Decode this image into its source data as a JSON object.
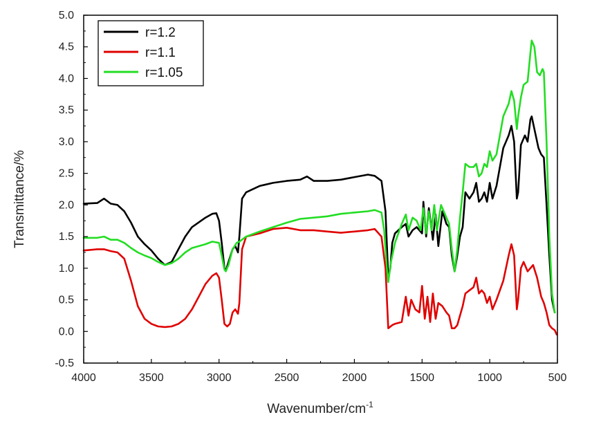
{
  "chart_data": {
    "type": "line",
    "title": "",
    "xlabel": "Wavenumber/cm",
    "xlabel_superscript": "-1",
    "ylabel": "Transmittance/%",
    "xlim": [
      4000,
      500
    ],
    "ylim": [
      -0.5,
      5.0
    ],
    "x_reversed": true,
    "x_ticks": [
      4000,
      3500,
      3000,
      2500,
      2000,
      1500,
      1000,
      500
    ],
    "x_tick_labels": [
      "4000",
      "3500",
      "3000",
      "2500",
      "2000",
      "1500",
      "1000",
      "500"
    ],
    "y_ticks": [
      -0.5,
      0.0,
      0.5,
      1.0,
      1.5,
      2.0,
      2.5,
      3.0,
      3.5,
      4.0,
      4.5,
      5.0
    ],
    "y_tick_labels": [
      "-0.5",
      "0.0",
      "0.5",
      "1.0",
      "1.5",
      "2.0",
      "2.5",
      "3.0",
      "3.5",
      "4.0",
      "4.5",
      "5.0"
    ],
    "grid": false,
    "legend_position": "top-left",
    "series": [
      {
        "name": "r=1.2",
        "color": "#000000",
        "points": [
          [
            4000,
            2.02
          ],
          [
            3900,
            2.03
          ],
          [
            3850,
            2.1
          ],
          [
            3800,
            2.02
          ],
          [
            3750,
            2.0
          ],
          [
            3700,
            1.9
          ],
          [
            3650,
            1.72
          ],
          [
            3600,
            1.5
          ],
          [
            3550,
            1.38
          ],
          [
            3500,
            1.28
          ],
          [
            3450,
            1.15
          ],
          [
            3400,
            1.05
          ],
          [
            3350,
            1.1
          ],
          [
            3300,
            1.3
          ],
          [
            3250,
            1.5
          ],
          [
            3200,
            1.65
          ],
          [
            3100,
            1.8
          ],
          [
            3050,
            1.86
          ],
          [
            3020,
            1.87
          ],
          [
            3000,
            1.75
          ],
          [
            2980,
            1.4
          ],
          [
            2960,
            1.0
          ],
          [
            2950,
            0.96
          ],
          [
            2930,
            1.1
          ],
          [
            2900,
            1.3
          ],
          [
            2880,
            1.35
          ],
          [
            2860,
            1.25
          ],
          [
            2850,
            1.5
          ],
          [
            2830,
            2.1
          ],
          [
            2800,
            2.2
          ],
          [
            2700,
            2.3
          ],
          [
            2600,
            2.35
          ],
          [
            2500,
            2.38
          ],
          [
            2400,
            2.4
          ],
          [
            2350,
            2.45
          ],
          [
            2300,
            2.38
          ],
          [
            2200,
            2.38
          ],
          [
            2100,
            2.4
          ],
          [
            2000,
            2.44
          ],
          [
            1900,
            2.48
          ],
          [
            1850,
            2.46
          ],
          [
            1800,
            2.38
          ],
          [
            1770,
            1.9
          ],
          [
            1750,
            0.85
          ],
          [
            1735,
            1.0
          ],
          [
            1720,
            1.4
          ],
          [
            1700,
            1.55
          ],
          [
            1650,
            1.65
          ],
          [
            1620,
            1.7
          ],
          [
            1600,
            1.5
          ],
          [
            1570,
            1.6
          ],
          [
            1540,
            1.65
          ],
          [
            1500,
            1.55
          ],
          [
            1490,
            2.05
          ],
          [
            1470,
            1.5
          ],
          [
            1450,
            1.95
          ],
          [
            1420,
            1.45
          ],
          [
            1400,
            1.85
          ],
          [
            1380,
            1.35
          ],
          [
            1350,
            1.9
          ],
          [
            1320,
            1.7
          ],
          [
            1300,
            1.65
          ],
          [
            1280,
            1.2
          ],
          [
            1260,
            0.95
          ],
          [
            1240,
            1.2
          ],
          [
            1220,
            1.5
          ],
          [
            1200,
            1.65
          ],
          [
            1180,
            2.2
          ],
          [
            1150,
            2.1
          ],
          [
            1120,
            2.2
          ],
          [
            1100,
            2.35
          ],
          [
            1080,
            2.05
          ],
          [
            1060,
            2.1
          ],
          [
            1040,
            2.2
          ],
          [
            1020,
            2.05
          ],
          [
            1000,
            2.35
          ],
          [
            980,
            2.1
          ],
          [
            950,
            2.3
          ],
          [
            900,
            2.9
          ],
          [
            860,
            3.1
          ],
          [
            840,
            3.25
          ],
          [
            820,
            3.0
          ],
          [
            800,
            2.1
          ],
          [
            790,
            2.2
          ],
          [
            770,
            2.95
          ],
          [
            740,
            3.1
          ],
          [
            720,
            3.0
          ],
          [
            700,
            3.35
          ],
          [
            690,
            3.4
          ],
          [
            670,
            3.2
          ],
          [
            640,
            2.9
          ],
          [
            620,
            2.8
          ],
          [
            600,
            2.75
          ],
          [
            580,
            2.0
          ],
          [
            560,
            1.2
          ],
          [
            540,
            0.5
          ],
          [
            520,
            0.3
          ]
        ]
      },
      {
        "name": "r=1.1",
        "color": "#e00000",
        "points": [
          [
            4000,
            1.28
          ],
          [
            3900,
            1.3
          ],
          [
            3850,
            1.3
          ],
          [
            3800,
            1.27
          ],
          [
            3750,
            1.25
          ],
          [
            3700,
            1.15
          ],
          [
            3650,
            0.8
          ],
          [
            3600,
            0.4
          ],
          [
            3550,
            0.2
          ],
          [
            3500,
            0.12
          ],
          [
            3450,
            0.08
          ],
          [
            3400,
            0.07
          ],
          [
            3350,
            0.08
          ],
          [
            3300,
            0.12
          ],
          [
            3250,
            0.2
          ],
          [
            3200,
            0.35
          ],
          [
            3150,
            0.55
          ],
          [
            3100,
            0.75
          ],
          [
            3050,
            0.88
          ],
          [
            3020,
            0.92
          ],
          [
            3000,
            0.85
          ],
          [
            2980,
            0.5
          ],
          [
            2960,
            0.12
          ],
          [
            2940,
            0.08
          ],
          [
            2920,
            0.12
          ],
          [
            2900,
            0.3
          ],
          [
            2880,
            0.35
          ],
          [
            2860,
            0.28
          ],
          [
            2850,
            0.45
          ],
          [
            2830,
            1.3
          ],
          [
            2800,
            1.5
          ],
          [
            2700,
            1.55
          ],
          [
            2600,
            1.62
          ],
          [
            2500,
            1.64
          ],
          [
            2400,
            1.6
          ],
          [
            2300,
            1.6
          ],
          [
            2200,
            1.58
          ],
          [
            2100,
            1.56
          ],
          [
            2000,
            1.58
          ],
          [
            1900,
            1.6
          ],
          [
            1850,
            1.62
          ],
          [
            1800,
            1.5
          ],
          [
            1770,
            1.0
          ],
          [
            1750,
            0.05
          ],
          [
            1720,
            0.1
          ],
          [
            1700,
            0.12
          ],
          [
            1650,
            0.15
          ],
          [
            1620,
            0.55
          ],
          [
            1600,
            0.25
          ],
          [
            1580,
            0.5
          ],
          [
            1550,
            0.35
          ],
          [
            1520,
            0.3
          ],
          [
            1500,
            0.72
          ],
          [
            1480,
            0.2
          ],
          [
            1460,
            0.55
          ],
          [
            1440,
            0.15
          ],
          [
            1420,
            0.6
          ],
          [
            1400,
            0.2
          ],
          [
            1380,
            0.45
          ],
          [
            1350,
            0.4
          ],
          [
            1320,
            0.3
          ],
          [
            1300,
            0.25
          ],
          [
            1280,
            0.05
          ],
          [
            1260,
            0.05
          ],
          [
            1240,
            0.1
          ],
          [
            1200,
            0.4
          ],
          [
            1180,
            0.6
          ],
          [
            1150,
            0.65
          ],
          [
            1120,
            0.7
          ],
          [
            1100,
            0.85
          ],
          [
            1080,
            0.6
          ],
          [
            1060,
            0.65
          ],
          [
            1040,
            0.6
          ],
          [
            1020,
            0.45
          ],
          [
            1000,
            0.55
          ],
          [
            980,
            0.35
          ],
          [
            950,
            0.5
          ],
          [
            900,
            0.8
          ],
          [
            860,
            1.2
          ],
          [
            840,
            1.38
          ],
          [
            820,
            1.2
          ],
          [
            800,
            0.35
          ],
          [
            790,
            0.5
          ],
          [
            770,
            1.0
          ],
          [
            750,
            1.1
          ],
          [
            720,
            0.95
          ],
          [
            700,
            1.0
          ],
          [
            680,
            1.05
          ],
          [
            650,
            0.85
          ],
          [
            620,
            0.55
          ],
          [
            600,
            0.45
          ],
          [
            580,
            0.3
          ],
          [
            560,
            0.1
          ],
          [
            540,
            0.05
          ],
          [
            520,
            0.02
          ],
          [
            505,
            -0.05
          ]
        ]
      },
      {
        "name": "r=1.05",
        "color": "#22dd22",
        "points": [
          [
            4000,
            1.48
          ],
          [
            3900,
            1.48
          ],
          [
            3850,
            1.5
          ],
          [
            3800,
            1.45
          ],
          [
            3750,
            1.45
          ],
          [
            3700,
            1.4
          ],
          [
            3650,
            1.32
          ],
          [
            3600,
            1.25
          ],
          [
            3550,
            1.2
          ],
          [
            3500,
            1.16
          ],
          [
            3450,
            1.1
          ],
          [
            3400,
            1.05
          ],
          [
            3350,
            1.08
          ],
          [
            3300,
            1.15
          ],
          [
            3250,
            1.25
          ],
          [
            3200,
            1.32
          ],
          [
            3100,
            1.38
          ],
          [
            3050,
            1.42
          ],
          [
            3000,
            1.4
          ],
          [
            2980,
            1.2
          ],
          [
            2960,
            0.98
          ],
          [
            2950,
            0.95
          ],
          [
            2930,
            1.05
          ],
          [
            2900,
            1.3
          ],
          [
            2870,
            1.4
          ],
          [
            2850,
            1.42
          ],
          [
            2800,
            1.5
          ],
          [
            2700,
            1.58
          ],
          [
            2600,
            1.65
          ],
          [
            2500,
            1.72
          ],
          [
            2400,
            1.78
          ],
          [
            2300,
            1.8
          ],
          [
            2200,
            1.82
          ],
          [
            2100,
            1.86
          ],
          [
            2000,
            1.88
          ],
          [
            1900,
            1.9
          ],
          [
            1850,
            1.92
          ],
          [
            1800,
            1.88
          ],
          [
            1780,
            1.6
          ],
          [
            1760,
            1.0
          ],
          [
            1750,
            0.78
          ],
          [
            1730,
            1.1
          ],
          [
            1700,
            1.4
          ],
          [
            1650,
            1.7
          ],
          [
            1620,
            1.85
          ],
          [
            1600,
            1.6
          ],
          [
            1570,
            1.8
          ],
          [
            1540,
            1.75
          ],
          [
            1510,
            1.6
          ],
          [
            1490,
            1.95
          ],
          [
            1470,
            1.55
          ],
          [
            1450,
            1.9
          ],
          [
            1430,
            1.6
          ],
          [
            1410,
            2.0
          ],
          [
            1390,
            1.6
          ],
          [
            1360,
            2.0
          ],
          [
            1320,
            1.8
          ],
          [
            1300,
            1.7
          ],
          [
            1280,
            1.3
          ],
          [
            1260,
            0.95
          ],
          [
            1240,
            1.3
          ],
          [
            1220,
            1.8
          ],
          [
            1200,
            2.2
          ],
          [
            1180,
            2.65
          ],
          [
            1150,
            2.6
          ],
          [
            1120,
            2.6
          ],
          [
            1100,
            2.65
          ],
          [
            1080,
            2.45
          ],
          [
            1060,
            2.5
          ],
          [
            1040,
            2.65
          ],
          [
            1020,
            2.6
          ],
          [
            1000,
            2.85
          ],
          [
            980,
            2.7
          ],
          [
            950,
            2.8
          ],
          [
            900,
            3.4
          ],
          [
            860,
            3.6
          ],
          [
            840,
            3.8
          ],
          [
            820,
            3.65
          ],
          [
            800,
            3.2
          ],
          [
            790,
            3.4
          ],
          [
            770,
            3.7
          ],
          [
            750,
            3.9
          ],
          [
            720,
            3.95
          ],
          [
            700,
            4.4
          ],
          [
            690,
            4.6
          ],
          [
            670,
            4.5
          ],
          [
            650,
            4.1
          ],
          [
            630,
            4.05
          ],
          [
            610,
            4.15
          ],
          [
            600,
            4.1
          ],
          [
            580,
            3.0
          ],
          [
            560,
            1.5
          ],
          [
            540,
            0.6
          ],
          [
            520,
            0.3
          ]
        ]
      }
    ]
  }
}
